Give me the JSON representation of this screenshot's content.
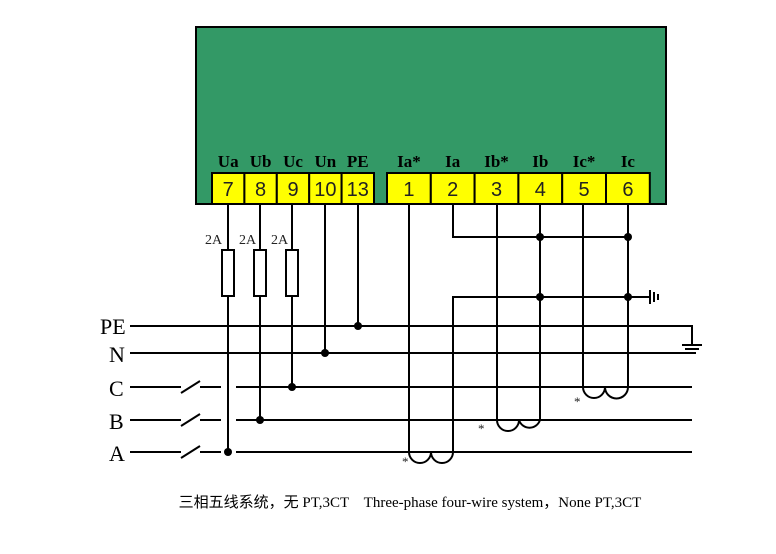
{
  "colors": {
    "meter_body": "#339966",
    "terminal": "#ffff00",
    "wire": "#000000"
  },
  "voltage_terminals": [
    {
      "label": "Ua",
      "number": "7"
    },
    {
      "label": "Ub",
      "number": "8"
    },
    {
      "label": "Uc",
      "number": "9"
    },
    {
      "label": "Un",
      "number": "10"
    },
    {
      "label": "PE",
      "number": "13"
    }
  ],
  "current_terminals": [
    {
      "label": "Ia*",
      "number": "1"
    },
    {
      "label": "Ia",
      "number": "2"
    },
    {
      "label": "Ib*",
      "number": "3"
    },
    {
      "label": "Ib",
      "number": "4"
    },
    {
      "label": "Ic*",
      "number": "5"
    },
    {
      "label": "Ic",
      "number": "6"
    }
  ],
  "fuses": [
    "2A",
    "2A",
    "2A"
  ],
  "lines": [
    "PE",
    "N",
    "C",
    "B",
    "A"
  ],
  "ct_polarity_mark": "*",
  "caption": "三相五线系统，无 PT,3CT    Three-phase four-wire system，None PT,3CT"
}
